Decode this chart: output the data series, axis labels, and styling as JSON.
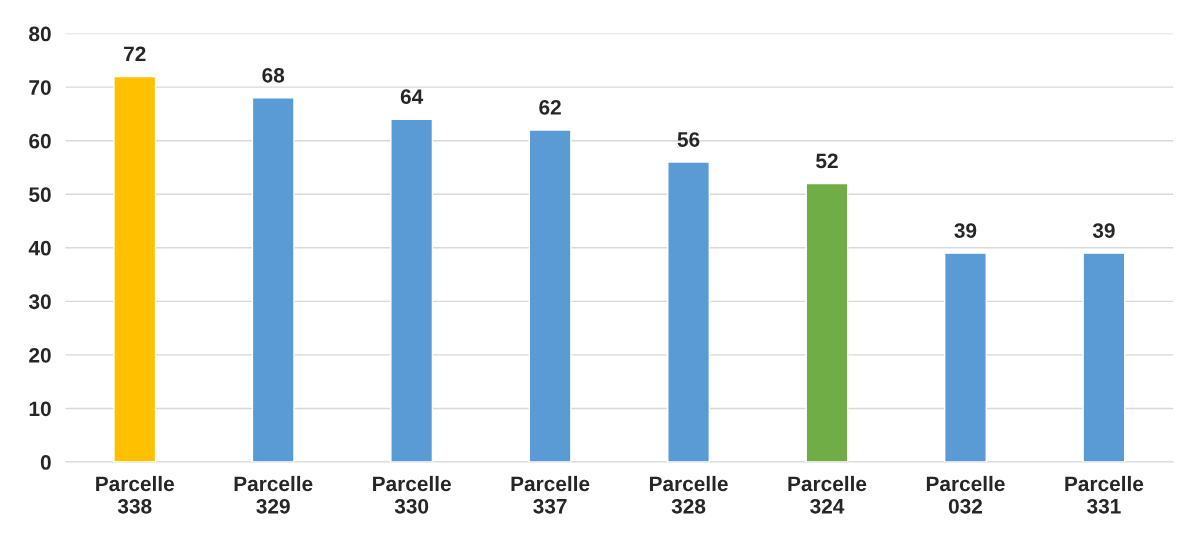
{
  "chart_data": {
    "type": "bar",
    "categories": [
      "Parcelle\n338",
      "Parcelle\n329",
      "Parcelle\n330",
      "Parcelle\n337",
      "Parcelle\n328",
      "Parcelle\n324",
      "Parcelle\n032",
      "Parcelle\n331"
    ],
    "values": [
      72,
      68,
      64,
      62,
      56,
      52,
      39,
      39
    ],
    "colors": [
      "#ffc000",
      "#5b9bd5",
      "#5b9bd5",
      "#5b9bd5",
      "#5b9bd5",
      "#70ad47",
      "#5b9bd5",
      "#5b9bd5"
    ],
    "ylim": [
      0,
      80
    ],
    "yticks": [
      0,
      10,
      20,
      30,
      40,
      50,
      60,
      70,
      80
    ],
    "grid": "y",
    "data_labels": true
  }
}
